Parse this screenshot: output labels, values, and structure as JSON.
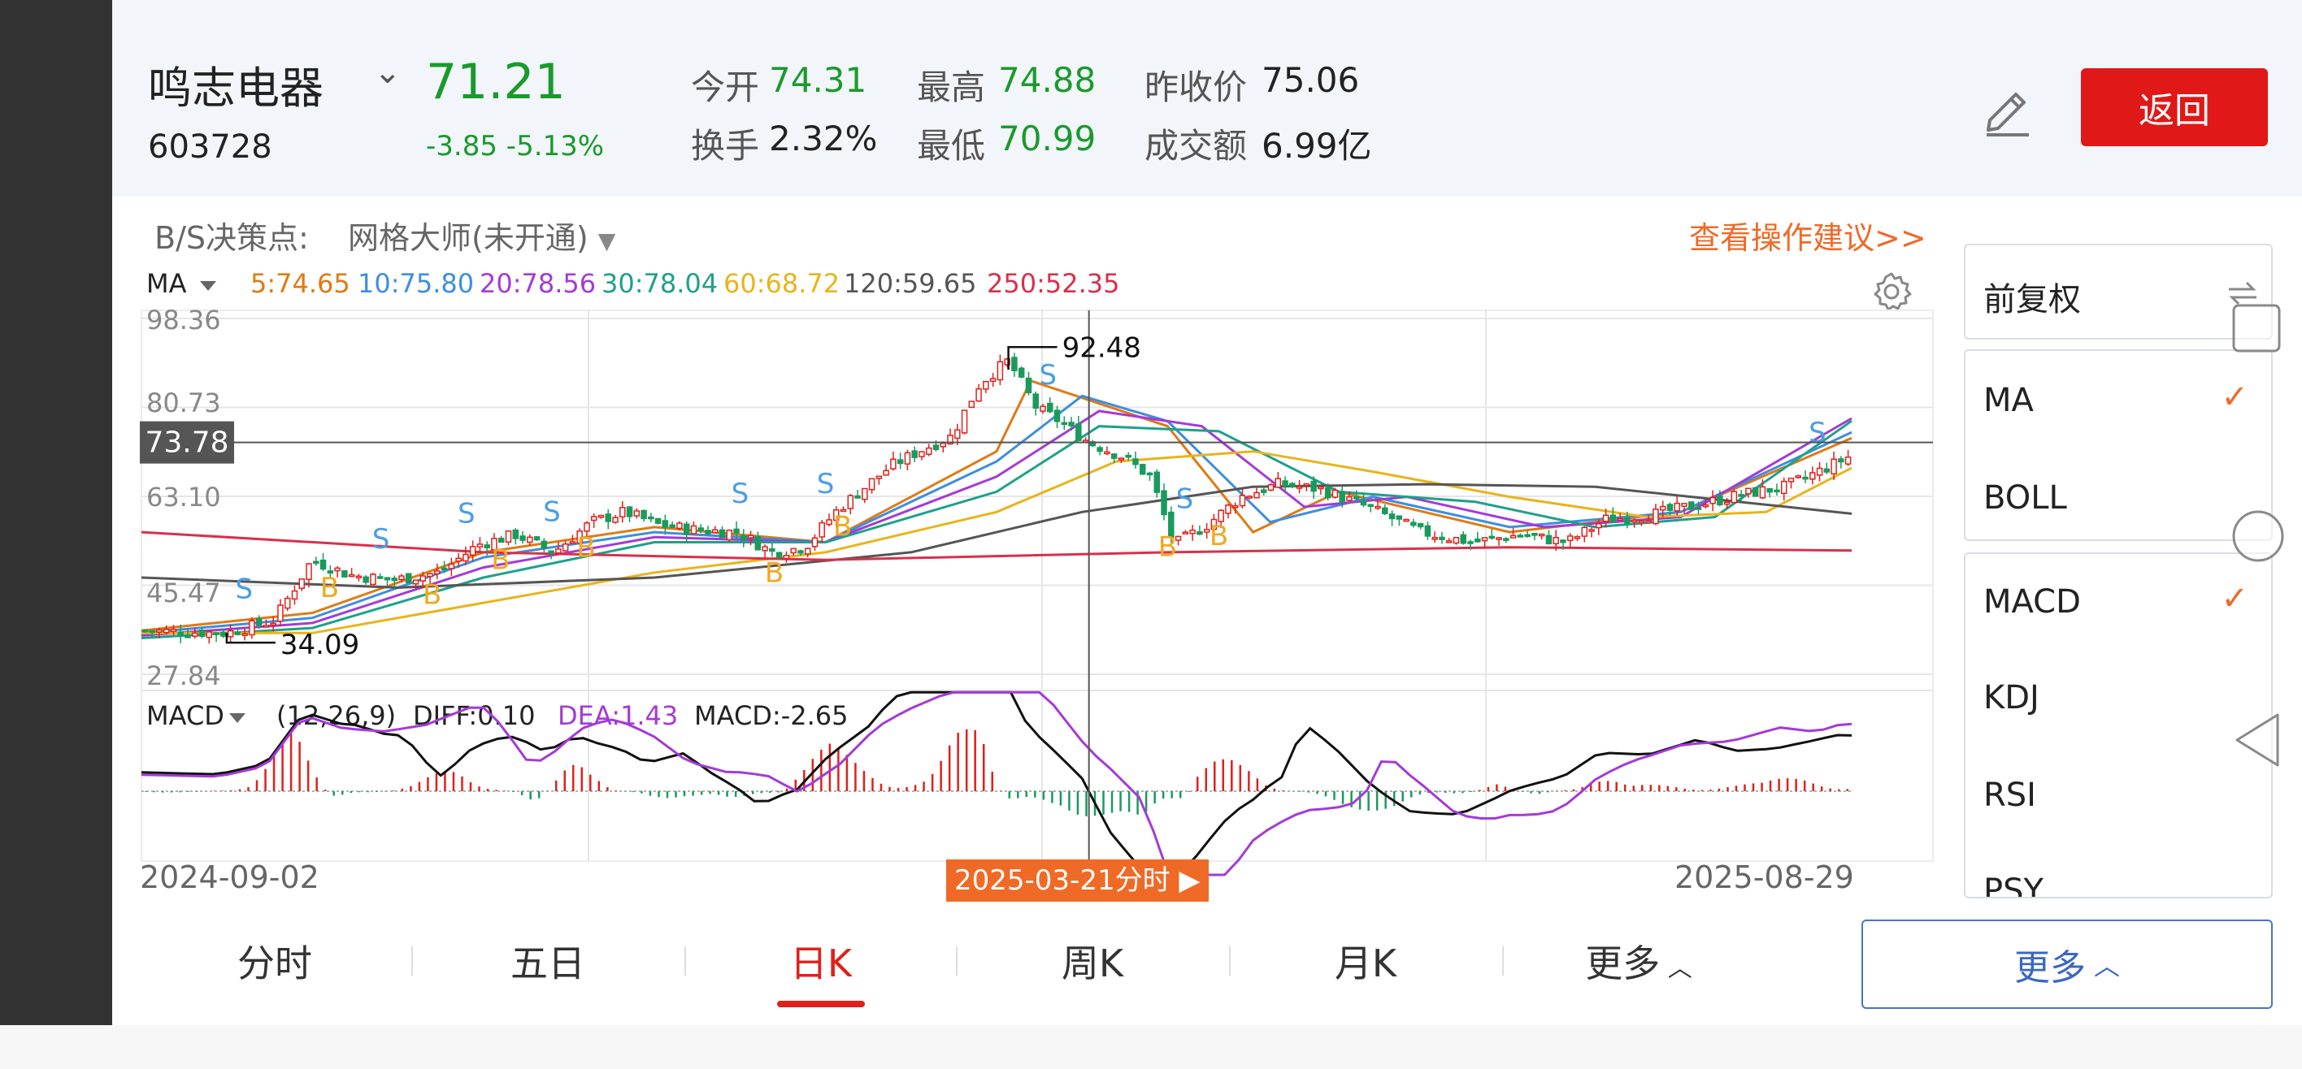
{
  "stock": {
    "name": "鸣志电器",
    "code": "603728",
    "price": "71.21",
    "change": "-3.85",
    "change_pct": "-5.13%"
  },
  "quote": {
    "open_label": "今开",
    "open": "74.31",
    "high_label": "最高",
    "high": "74.88",
    "prev_close_label": "昨收价",
    "prev_close": "75.06",
    "turnover_label": "换手",
    "turnover": "2.32%",
    "low_label": "最低",
    "low": "70.99",
    "amount_label": "成交额",
    "amount": "6.99亿"
  },
  "back_label": "返回",
  "bs": {
    "label": "B/S决策点:",
    "strategy": "网格大师(未开通)",
    "advice_link": "查看操作建议>>"
  },
  "ma_legend": {
    "label": "MA",
    "items": [
      {
        "text": "5:74.65",
        "color": "#e07a13"
      },
      {
        "text": "10:75.80",
        "color": "#3d8ee0"
      },
      {
        "text": "20:78.56",
        "color": "#a43ad8"
      },
      {
        "text": "30:78.04",
        "color": "#1ea18a"
      },
      {
        "text": "60:68.72",
        "color": "#e8b41b"
      },
      {
        "text": "120:59.65",
        "color": "#555555"
      },
      {
        "text": "250:52.35",
        "color": "#d9304a"
      }
    ]
  },
  "price_axis": [
    "98.36",
    "80.73",
    "63.10",
    "45.47",
    "27.84"
  ],
  "crosshair_price": "73.78",
  "annotations": {
    "high": "92.48",
    "low": "34.09"
  },
  "macd_legend": {
    "label": "MACD",
    "params": "(12,26,9)",
    "diff": "DIFF:0.10",
    "dea": "DEA:1.43",
    "macd": "MACD:-2.65"
  },
  "dates": {
    "start": "2024-09-02",
    "end": "2025-08-29",
    "cursor": "2025-03-21分时"
  },
  "side_panel": {
    "adjust": "前复权",
    "main_indicators": [
      {
        "label": "MA",
        "checked": true
      },
      {
        "label": "BOLL",
        "checked": false
      }
    ],
    "sub_indicators": [
      {
        "label": "MACD",
        "checked": true
      },
      {
        "label": "KDJ",
        "checked": false
      },
      {
        "label": "RSI",
        "checked": false
      },
      {
        "label": "PSY",
        "checked": false
      }
    ]
  },
  "tabs": [
    "分时",
    "五日",
    "日K",
    "周K",
    "月K",
    "更多"
  ],
  "active_tab": "日K",
  "more_button": "更多",
  "colors": {
    "up": "#e0201b",
    "down": "#1a9a5c",
    "accent": "#ef6a27",
    "blue": "#3a66c4"
  },
  "chart_data": {
    "type": "candlestick",
    "x_range": [
      "2024-09-02",
      "2025-08-29"
    ],
    "ylim": [
      27.84,
      98.36
    ],
    "y_ticks": [
      98.36,
      80.73,
      63.1,
      45.47,
      27.84
    ],
    "close_path": [
      [
        "2024-09-02",
        36.5
      ],
      [
        "2024-09-20",
        36.0
      ],
      [
        "2024-09-30",
        38.5
      ],
      [
        "2024-10-08",
        50.5
      ],
      [
        "2024-10-16",
        47.5
      ],
      [
        "2024-10-25",
        46.5
      ],
      [
        "2024-11-04",
        48.0
      ],
      [
        "2024-11-12",
        53.5
      ],
      [
        "2024-11-20",
        55.5
      ],
      [
        "2024-11-28",
        52.0
      ],
      [
        "2024-12-06",
        58.0
      ],
      [
        "2024-12-13",
        60.0
      ],
      [
        "2024-12-20",
        57.5
      ],
      [
        "2024-12-27",
        56.5
      ],
      [
        "2025-01-06",
        56.0
      ],
      [
        "2025-01-13",
        52.0
      ],
      [
        "2025-01-20",
        53.0
      ],
      [
        "2025-01-27",
        60.5
      ],
      [
        "2025-02-07",
        69.0
      ],
      [
        "2025-02-13",
        72.0
      ],
      [
        "2025-02-20",
        75.0
      ],
      [
        "2025-02-26",
        85.5
      ],
      [
        "2025-03-04",
        90.0
      ],
      [
        "2025-03-10",
        80.5
      ],
      [
        "2025-03-14",
        78.5
      ],
      [
        "2025-03-21",
        73.8
      ],
      [
        "2025-03-28",
        71.0
      ],
      [
        "2025-04-03",
        67.0
      ],
      [
        "2025-04-08",
        53.5
      ],
      [
        "2025-04-15",
        57.5
      ],
      [
        "2025-04-22",
        63.0
      ],
      [
        "2025-04-30",
        65.5
      ],
      [
        "2025-05-09",
        64.5
      ],
      [
        "2025-05-20",
        60.5
      ],
      [
        "2025-05-30",
        56.0
      ],
      [
        "2025-06-10",
        54.0
      ],
      [
        "2025-06-20",
        55.5
      ],
      [
        "2025-06-30",
        54.0
      ],
      [
        "2025-07-08",
        58.5
      ],
      [
        "2025-07-18",
        59.5
      ],
      [
        "2025-07-28",
        61.5
      ],
      [
        "2025-08-06",
        63.5
      ],
      [
        "2025-08-15",
        65.0
      ],
      [
        "2025-08-22",
        68.0
      ],
      [
        "2025-08-29",
        71.21
      ]
    ],
    "ma": {
      "MA5": [
        [
          0,
          36.5
        ],
        [
          0.1,
          40
        ],
        [
          0.2,
          52
        ],
        [
          0.3,
          57
        ],
        [
          0.4,
          54
        ],
        [
          0.5,
          72
        ],
        [
          0.52,
          86
        ],
        [
          0.6,
          77
        ],
        [
          0.65,
          56
        ],
        [
          0.7,
          64
        ],
        [
          0.8,
          56
        ],
        [
          0.9,
          60
        ],
        [
          1,
          74.65
        ]
      ],
      "MA10": [
        [
          0,
          36
        ],
        [
          0.1,
          39
        ],
        [
          0.2,
          51
        ],
        [
          0.3,
          56
        ],
        [
          0.4,
          54
        ],
        [
          0.5,
          70
        ],
        [
          0.55,
          83
        ],
        [
          0.6,
          78
        ],
        [
          0.66,
          58
        ],
        [
          0.72,
          63
        ],
        [
          0.8,
          57
        ],
        [
          0.9,
          60
        ],
        [
          1,
          75.8
        ]
      ],
      "MA20": [
        [
          0,
          35.5
        ],
        [
          0.1,
          38
        ],
        [
          0.2,
          49
        ],
        [
          0.3,
          55
        ],
        [
          0.4,
          54
        ],
        [
          0.5,
          67
        ],
        [
          0.56,
          80
        ],
        [
          0.62,
          77
        ],
        [
          0.68,
          61
        ],
        [
          0.74,
          63
        ],
        [
          0.82,
          57
        ],
        [
          0.9,
          59
        ],
        [
          1,
          78.56
        ]
      ],
      "MA30": [
        [
          0,
          35
        ],
        [
          0.1,
          37
        ],
        [
          0.2,
          47
        ],
        [
          0.3,
          54
        ],
        [
          0.4,
          54
        ],
        [
          0.5,
          64
        ],
        [
          0.56,
          77
        ],
        [
          0.63,
          76
        ],
        [
          0.7,
          64
        ],
        [
          0.78,
          62
        ],
        [
          0.85,
          57
        ],
        [
          0.92,
          59
        ],
        [
          1,
          78.04
        ]
      ],
      "MA60": [
        [
          0,
          36
        ],
        [
          0.1,
          36
        ],
        [
          0.2,
          42
        ],
        [
          0.3,
          48
        ],
        [
          0.4,
          52
        ],
        [
          0.5,
          60
        ],
        [
          0.57,
          70
        ],
        [
          0.65,
          72
        ],
        [
          0.72,
          68
        ],
        [
          0.8,
          63
        ],
        [
          0.88,
          59
        ],
        [
          0.95,
          60
        ],
        [
          1,
          68.72
        ]
      ],
      "MA120": [
        [
          0,
          47
        ],
        [
          0.15,
          45
        ],
        [
          0.3,
          47
        ],
        [
          0.45,
          52
        ],
        [
          0.55,
          60
        ],
        [
          0.65,
          65
        ],
        [
          0.75,
          65.5
        ],
        [
          0.85,
          65
        ],
        [
          1,
          59.65
        ]
      ],
      "MA250": [
        [
          0,
          56
        ],
        [
          0.2,
          52
        ],
        [
          0.4,
          50.5
        ],
        [
          0.6,
          52
        ],
        [
          0.8,
          53
        ],
        [
          1,
          52.35
        ]
      ]
    },
    "signals": [
      {
        "t": 0.06,
        "type": "S"
      },
      {
        "t": 0.11,
        "type": "B"
      },
      {
        "t": 0.14,
        "type": "S"
      },
      {
        "t": 0.17,
        "type": "B"
      },
      {
        "t": 0.19,
        "type": "S"
      },
      {
        "t": 0.21,
        "type": "B"
      },
      {
        "t": 0.24,
        "type": "S"
      },
      {
        "t": 0.26,
        "type": "B"
      },
      {
        "t": 0.35,
        "type": "S"
      },
      {
        "t": 0.37,
        "type": "B"
      },
      {
        "t": 0.4,
        "type": "S"
      },
      {
        "t": 0.41,
        "type": "B"
      },
      {
        "t": 0.53,
        "type": "S"
      },
      {
        "t": 0.6,
        "type": "B"
      },
      {
        "t": 0.61,
        "type": "S"
      },
      {
        "t": 0.63,
        "type": "B"
      },
      {
        "t": 0.98,
        "type": "S"
      }
    ]
  }
}
